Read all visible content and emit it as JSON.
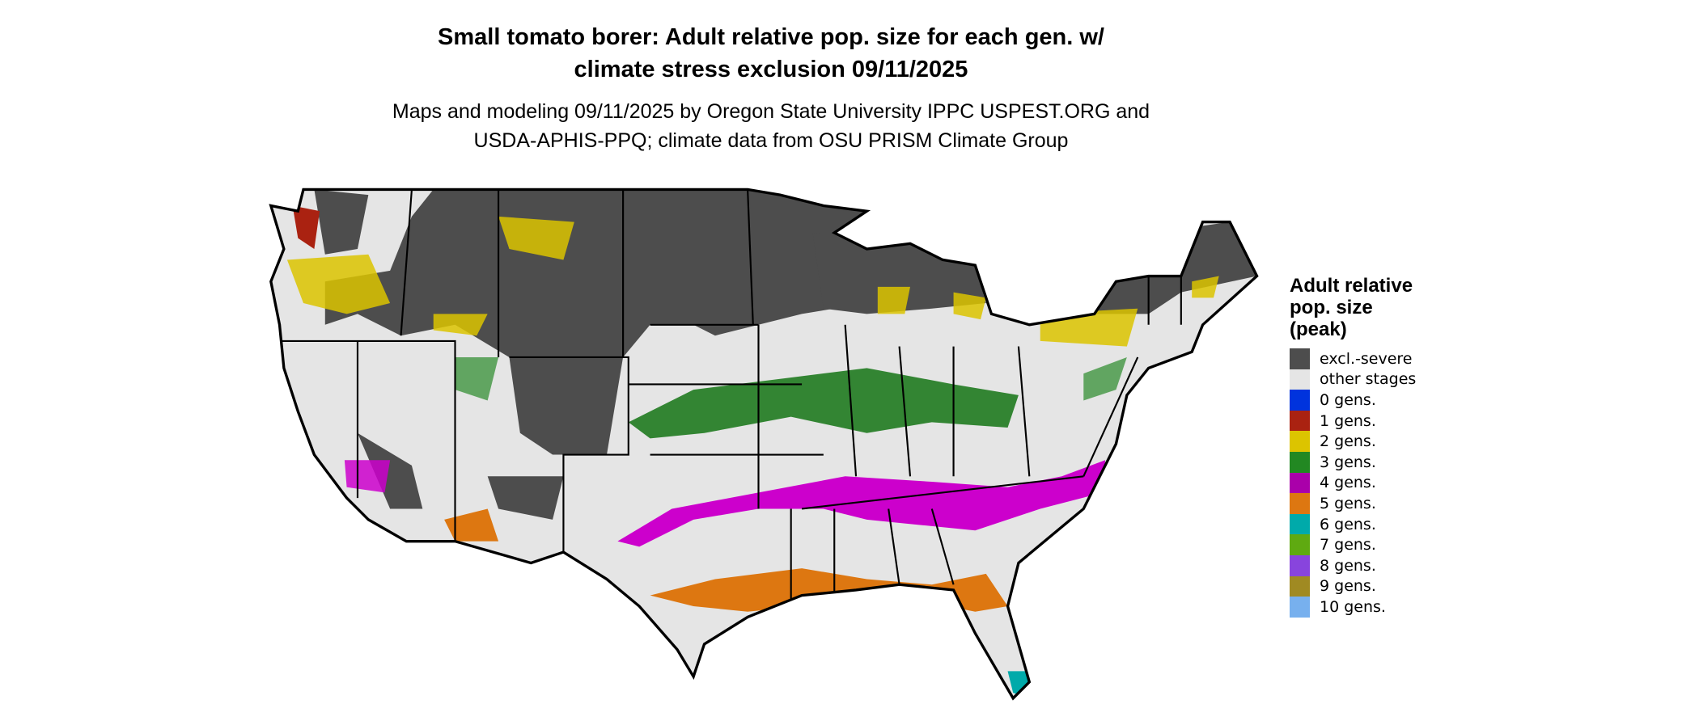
{
  "title_lines": [
    "Small tomato borer: Adult relative pop. size for each gen. w/",
    "climate stress exclusion 09/11/2025"
  ],
  "subtitle_lines": [
    "Maps and modeling 09/11/2025 by Oregon State University IPPC USPEST.ORG and",
    "USDA-APHIS-PPQ; climate data from OSU PRISM Climate Group"
  ],
  "legend": {
    "title_lines": [
      "Adult relative",
      "pop. size",
      "(peak)"
    ],
    "items": [
      {
        "label": "excl.-severe",
        "color": "#4d4d4d"
      },
      {
        "label": "other stages",
        "color": "#e5e5e5"
      },
      {
        "label": "0 gens.",
        "color": "#0033dd"
      },
      {
        "label": "1 gens.",
        "color": "#aa2211"
      },
      {
        "label": "2 gens.",
        "color": "#dcc400"
      },
      {
        "label": "3 gens.",
        "color": "#228822"
      },
      {
        "label": "4 gens.",
        "color": "#aa00aa"
      },
      {
        "label": "5 gens.",
        "color": "#dd7711"
      },
      {
        "label": "6 gens.",
        "color": "#00aaaa"
      },
      {
        "label": "7 gens.",
        "color": "#5faa11"
      },
      {
        "label": "8 gens.",
        "color": "#8844dd"
      },
      {
        "label": "9 gens.",
        "color": "#a08a22"
      },
      {
        "label": "10 gens.",
        "color": "#77b0ee"
      }
    ]
  }
}
